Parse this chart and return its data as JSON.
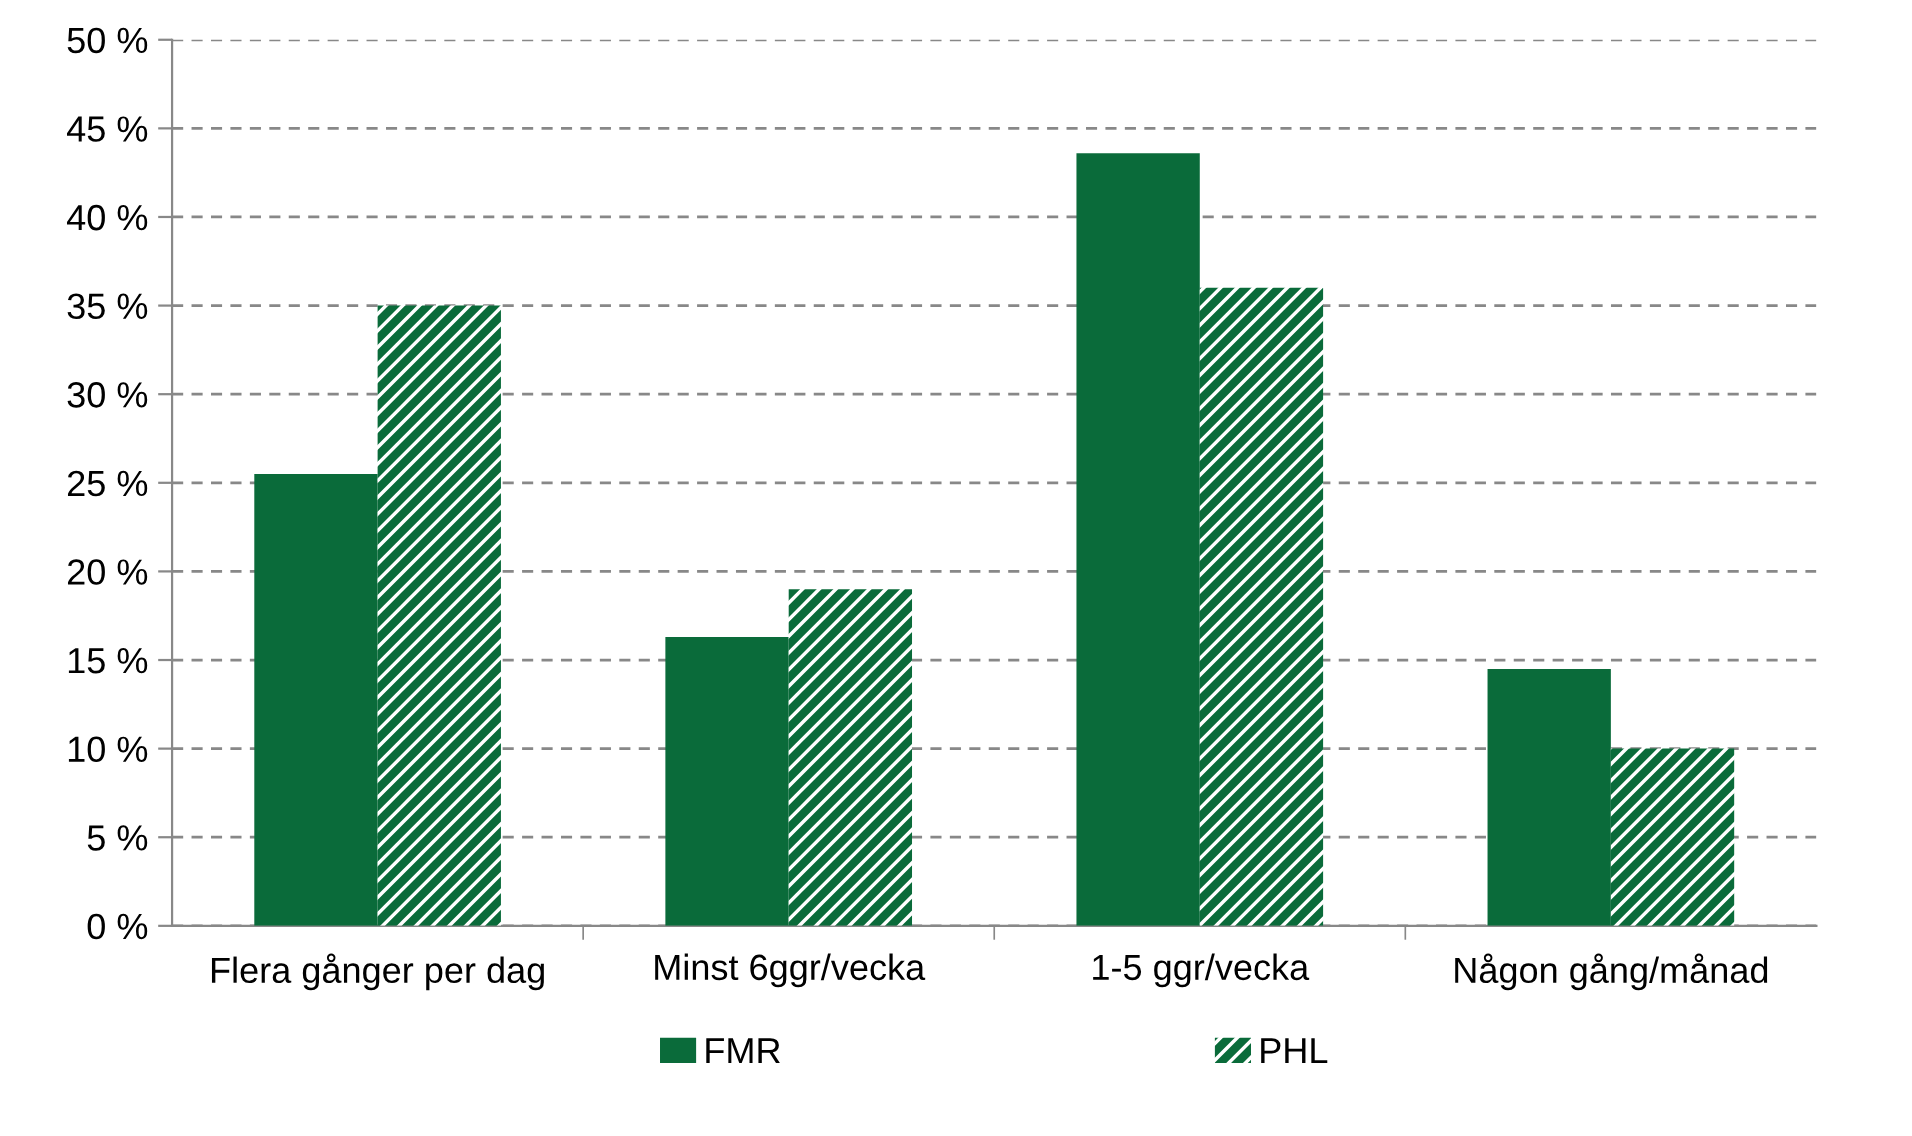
{
  "chart_data": {
    "type": "bar",
    "categories": [
      "Flera gånger per dag",
      "Minst 6ggr/vecka",
      "1-5 ggr/vecka",
      "Någon gång/månad"
    ],
    "series": [
      {
        "name": "FMR",
        "color": "#0a6b3a",
        "values": [
          25.5,
          16.3,
          43.6,
          14.5
        ]
      },
      {
        "name": "PHL",
        "color": "#0a6b3a",
        "values": [
          35,
          19,
          36,
          10
        ]
      }
    ],
    "ylim": [
      0,
      50
    ],
    "yticks": [
      {
        "value": 0,
        "label": "0 %"
      },
      {
        "value": 5,
        "label": "5 %"
      },
      {
        "value": 10,
        "label": "10 %"
      },
      {
        "value": 15,
        "label": "15 %"
      },
      {
        "value": 20,
        "label": "20 %"
      },
      {
        "value": 25,
        "label": "25 %"
      },
      {
        "value": 30,
        "label": "30 %"
      },
      {
        "value": 35,
        "label": "35 %"
      },
      {
        "value": 40,
        "label": "40 %"
      },
      {
        "value": 45,
        "label": "45 %"
      },
      {
        "value": 50,
        "label": "50 %"
      }
    ],
    "grid": "y",
    "legend": "bottom"
  }
}
